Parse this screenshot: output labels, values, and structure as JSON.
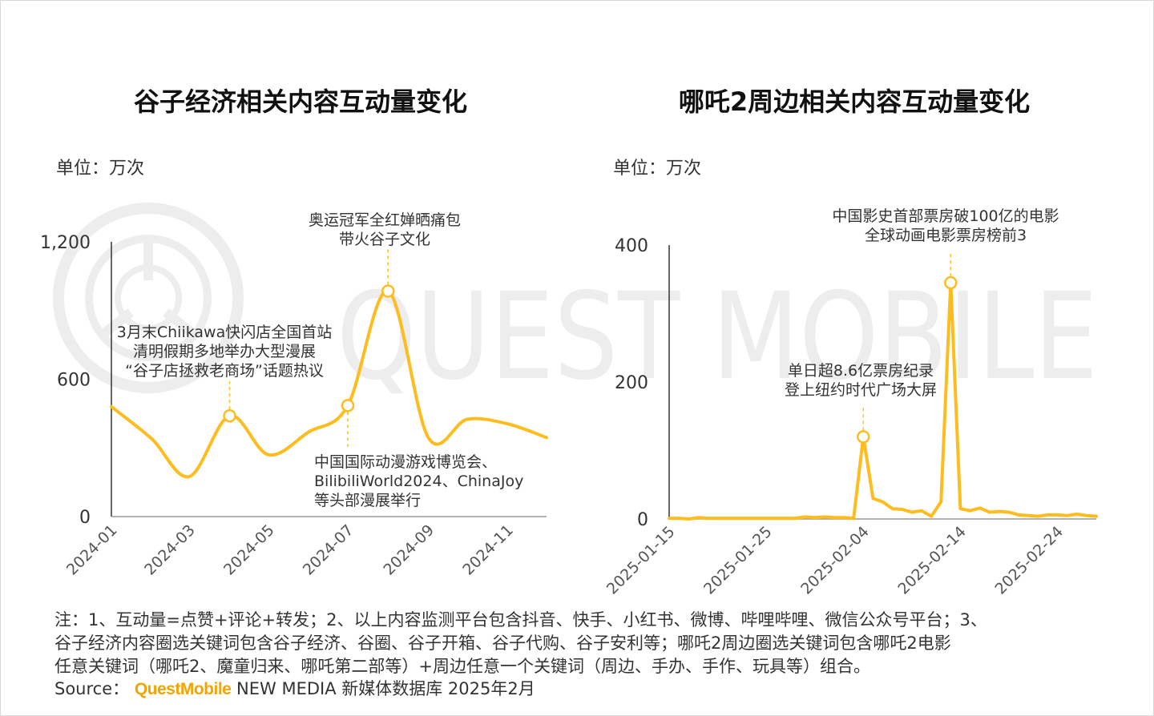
{
  "watermark": "QUEST MOBILE",
  "colors": {
    "line": "#FFBC1F",
    "axis": "#333333",
    "text": "#333333",
    "brand": "#F5A300",
    "watermark": "#ededed"
  },
  "notes": [
    "注：1、互动量=点赞+评论+转发；2、以上内容监测平台包含抖音、快手、小红书、微博、哔哩哔哩、微信公众号平台；3、",
    "谷子经济内容圈选关键词包含谷子经济、谷圈、谷子开箱、谷子代购、谷子安利等；哪吒2周边圈选关键词包含哪吒2电影",
    "任意关键词（哪吒2、魔童归来、哪吒第二部等）+周边任意一个关键词（周边、手办、手作、玩具等）组合。"
  ],
  "source": {
    "label": "Source：",
    "brand": "QuestMobile",
    "text": "NEW MEDIA 新媒体数据库 2025年2月"
  },
  "chart_data": [
    {
      "type": "line",
      "title": "谷子经济相关内容互动量变化",
      "unit_label": "单位：万次",
      "ylim": [
        0,
        1200
      ],
      "yticks": [
        0,
        600,
        1200
      ],
      "ytick_labels": [
        "0",
        "600",
        "1,200"
      ],
      "xlim": [
        "2024-01",
        "2024-12"
      ],
      "xtick_labels": [
        "2024-01",
        "2024-03",
        "2024-05",
        "2024-07",
        "2024-09",
        "2024-11"
      ],
      "x": [
        "2024-01",
        "2024-02",
        "2024-03",
        "2024-04",
        "2024-05",
        "2024-06",
        "2024-07",
        "2024-08",
        "2024-09",
        "2024-10",
        "2024-11",
        "2024-12"
      ],
      "values": [
        480,
        340,
        175,
        440,
        270,
        370,
        485,
        985,
        345,
        425,
        405,
        345
      ],
      "annotations": [
        {
          "x": "2024-04",
          "y": 440,
          "lines": [
            "3月末Chiikawa快闪店全国首站",
            "清明假期多地举办大型漫展",
            "“谷子店拯救老商场”话题热议"
          ]
        },
        {
          "x": "2024-07",
          "y": 485,
          "lines": [
            "中国国际动漫游戏博览会、",
            "BilibiliWorld2024、ChinaJoy",
            "等头部漫展举行"
          ]
        },
        {
          "x": "2024-08",
          "y": 985,
          "lines": [
            "奥运冠军全红婵晒痛包",
            "带火谷子文化"
          ]
        }
      ]
    },
    {
      "type": "line",
      "title": "哪吒2周边相关内容互动量变化",
      "unit_label": "单位：万次",
      "ylim": [
        0,
        400
      ],
      "yticks": [
        0,
        200,
        400
      ],
      "ytick_labels": [
        "0",
        "200",
        "400"
      ],
      "xlim": [
        "2025-01-15",
        "2025-02-28"
      ],
      "xtick_labels": [
        "2025-01-15",
        "2025-01-25",
        "2025-02-04",
        "2025-02-14",
        "2025-02-24"
      ],
      "x": [
        "2025-01-15",
        "2025-01-16",
        "2025-01-17",
        "2025-01-18",
        "2025-01-19",
        "2025-01-20",
        "2025-01-21",
        "2025-01-22",
        "2025-01-23",
        "2025-01-24",
        "2025-01-25",
        "2025-01-26",
        "2025-01-27",
        "2025-01-28",
        "2025-01-29",
        "2025-01-30",
        "2025-01-31",
        "2025-02-01",
        "2025-02-02",
        "2025-02-03",
        "2025-02-04",
        "2025-02-05",
        "2025-02-06",
        "2025-02-07",
        "2025-02-08",
        "2025-02-09",
        "2025-02-10",
        "2025-02-11",
        "2025-02-12",
        "2025-02-13",
        "2025-02-14",
        "2025-02-15",
        "2025-02-16",
        "2025-02-17",
        "2025-02-18",
        "2025-02-19",
        "2025-02-20",
        "2025-02-21",
        "2025-02-22",
        "2025-02-23",
        "2025-02-24",
        "2025-02-25",
        "2025-02-26",
        "2025-02-27",
        "2025-02-28"
      ],
      "values": [
        1,
        1,
        0,
        2,
        1,
        1,
        1,
        1,
        1,
        1,
        1,
        1,
        1,
        1,
        3,
        2,
        3,
        2,
        2,
        1,
        120,
        30,
        25,
        15,
        14,
        10,
        12,
        4,
        25,
        345,
        15,
        12,
        16,
        10,
        11,
        10,
        6,
        5,
        4,
        6,
        6,
        5,
        7,
        5,
        4
      ],
      "annotations": [
        {
          "x": "2025-02-04",
          "y": 120,
          "lines": [
            "单日超8.6亿票房纪录",
            "登上纽约时代广场大屏"
          ]
        },
        {
          "x": "2025-02-13",
          "y": 345,
          "lines": [
            "中国影史首部票房破100亿的电影",
            "全球动画电影票房榜前3"
          ]
        }
      ]
    }
  ]
}
